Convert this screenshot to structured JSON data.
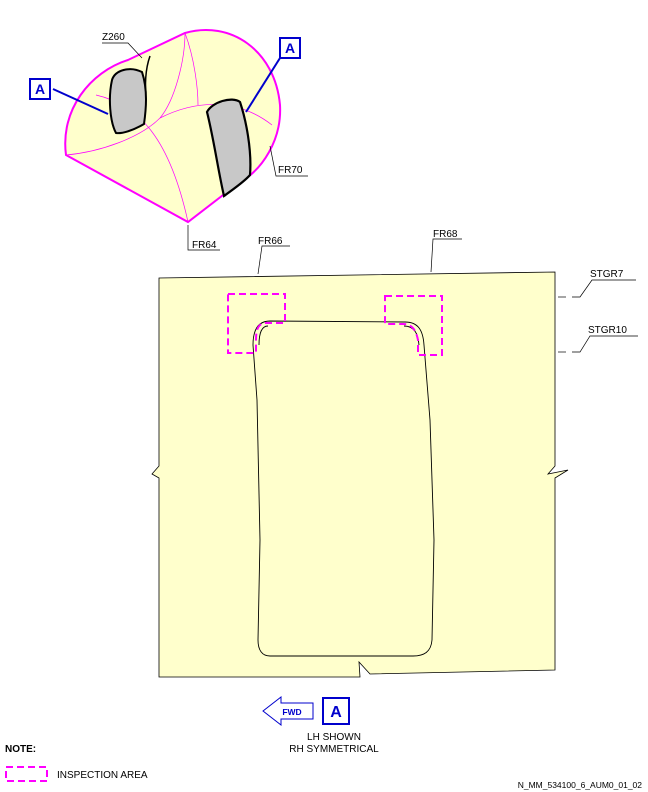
{
  "iso_view": {
    "zone_label": "Z260",
    "frame_left": "FR64",
    "frame_right": "FR70",
    "callout_1": "A",
    "callout_2": "A"
  },
  "detail_view": {
    "frame_label_1": "FR66",
    "frame_label_2": "FR68",
    "stringer_label_1": "STGR7",
    "stringer_label_2": "STGR10",
    "fwd_label": "FWD",
    "view_callout": "A",
    "note_line_1": "LH SHOWN",
    "note_line_2": "RH SYMMETRICAL"
  },
  "legend": {
    "heading": "NOTE:",
    "inspection_label": "INSPECTION AREA"
  },
  "drawing_id": "N_MM_534100_6_AUM0_01_02",
  "colors": {
    "panel_fill": "#ffffcc",
    "inspection_magenta": "#ff00ff",
    "callout_blue": "#0000cc",
    "door_gray": "#c8c8c8"
  }
}
